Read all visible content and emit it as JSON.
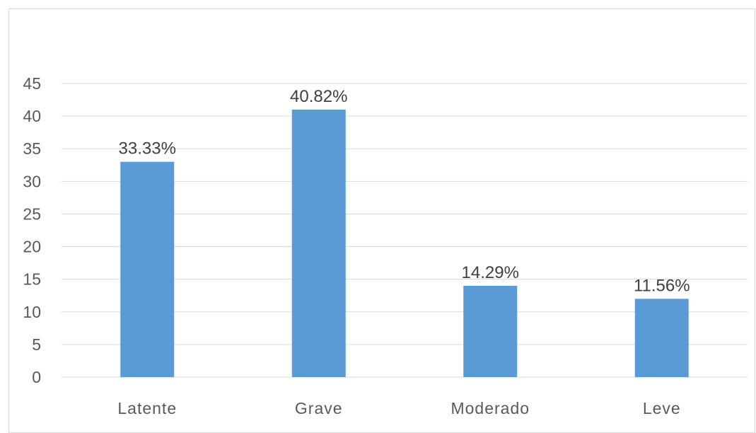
{
  "chart_data": {
    "type": "bar",
    "categories": [
      "Latente",
      "Grave",
      "Moderado",
      "Leve"
    ],
    "values": [
      33.0,
      41.0,
      14.0,
      12.0
    ],
    "data_labels": [
      "33.33%",
      "40.82%",
      "14.29%",
      "11.56%"
    ],
    "ylim": [
      0,
      45
    ],
    "yticks": [
      0,
      5,
      10,
      15,
      20,
      25,
      30,
      35,
      40,
      45
    ],
    "title": "",
    "xlabel": "",
    "ylabel": "",
    "grid": true,
    "legend": "none",
    "bar_color": "#5b9bd5",
    "grid_color": "#d9d9d9"
  }
}
